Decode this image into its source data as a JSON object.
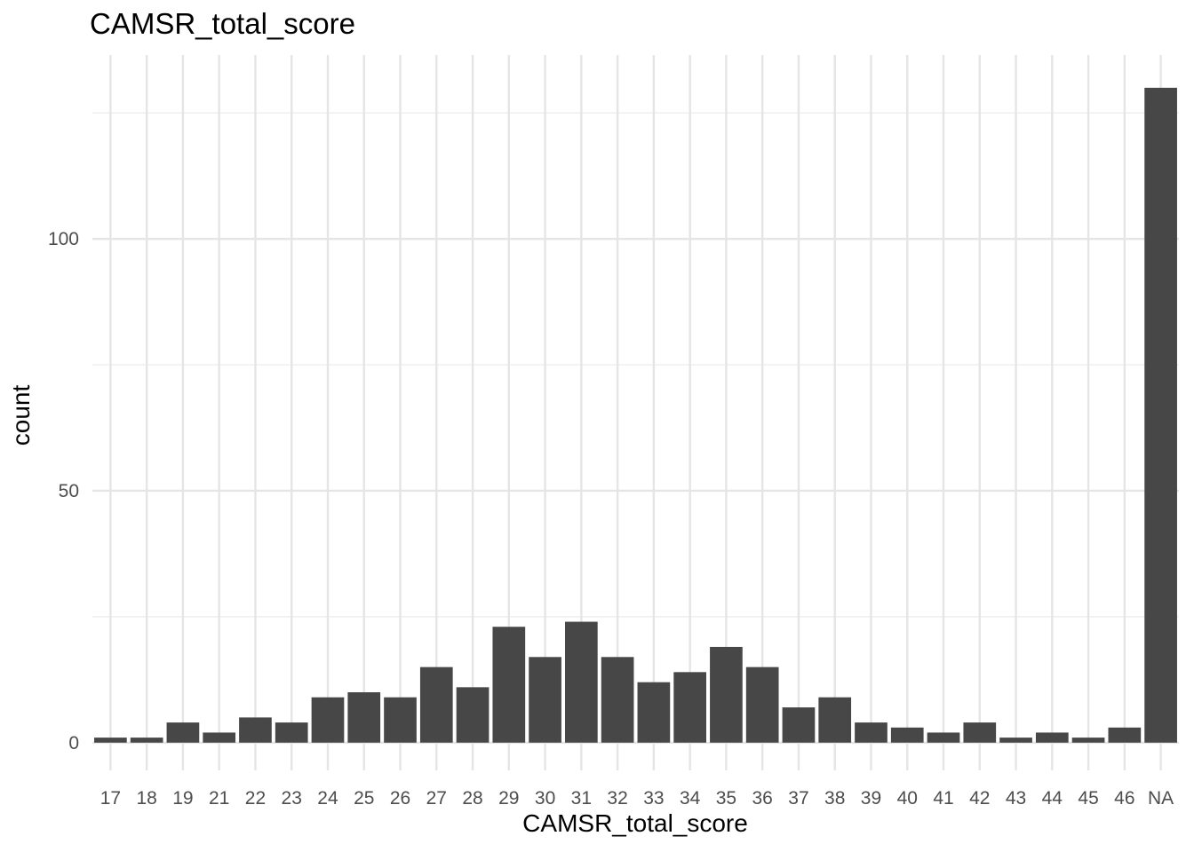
{
  "chart_data": {
    "type": "bar",
    "title": "CAMSR_total_score",
    "xlabel": "CAMSR_total_score",
    "ylabel": "count",
    "categories": [
      "17",
      "18",
      "19",
      "21",
      "22",
      "23",
      "24",
      "25",
      "26",
      "27",
      "28",
      "29",
      "30",
      "31",
      "32",
      "33",
      "34",
      "35",
      "36",
      "37",
      "38",
      "39",
      "40",
      "41",
      "42",
      "43",
      "44",
      "45",
      "46",
      "NA"
    ],
    "values": [
      1,
      1,
      4,
      2,
      5,
      4,
      9,
      10,
      9,
      15,
      11,
      23,
      17,
      24,
      17,
      12,
      14,
      19,
      15,
      7,
      9,
      4,
      3,
      2,
      4,
      1,
      2,
      1,
      3,
      130
    ],
    "ylim": [
      -5.5,
      136.5
    ],
    "yticks": [
      0,
      50,
      100
    ],
    "grid": true,
    "bar_color": "#474747",
    "grid_major_color": "#e5e5e5",
    "grid_minor_color": "#eeeeee",
    "tick_label_color": "#4d4d4d"
  }
}
